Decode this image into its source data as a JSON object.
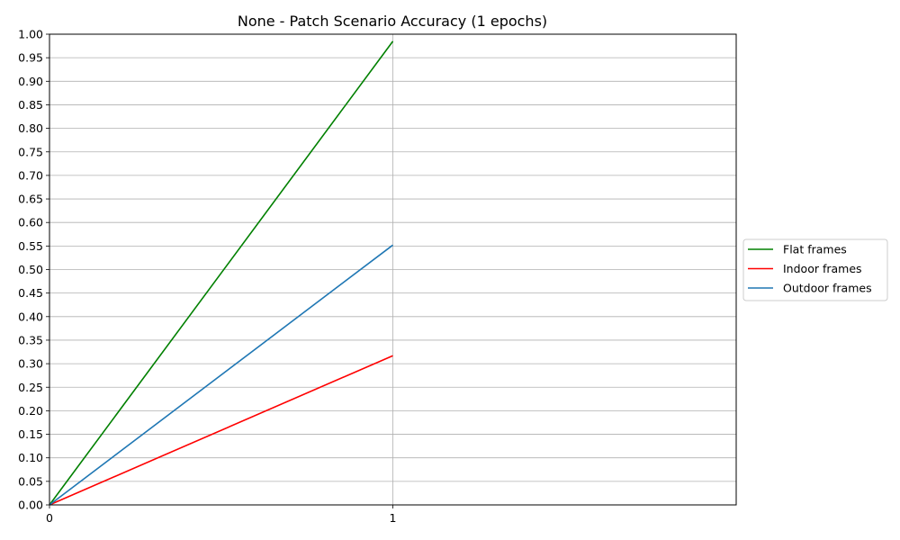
{
  "chart_data": {
    "type": "line",
    "title": "None - Patch Scenario Accuracy (1 epochs)",
    "xlabel": "",
    "ylabel": "",
    "x": [
      0,
      1
    ],
    "xticks": [
      "0",
      "1"
    ],
    "xlim": [
      0,
      2
    ],
    "ylim": [
      0,
      1
    ],
    "yticks": [
      "0.00",
      "0.05",
      "0.10",
      "0.15",
      "0.20",
      "0.25",
      "0.30",
      "0.35",
      "0.40",
      "0.45",
      "0.50",
      "0.55",
      "0.60",
      "0.65",
      "0.70",
      "0.75",
      "0.80",
      "0.85",
      "0.90",
      "0.95",
      "1.00"
    ],
    "grid": true,
    "legend_position": "center-right-outside",
    "series": [
      {
        "name": "Flat frames",
        "color": "#008000",
        "values": [
          0,
          0.985
        ]
      },
      {
        "name": "Indoor frames",
        "color": "#ff0000",
        "values": [
          0,
          0.317
        ]
      },
      {
        "name": "Outdoor frames",
        "color": "#1f77b4",
        "values": [
          0,
          0.552
        ]
      }
    ]
  }
}
